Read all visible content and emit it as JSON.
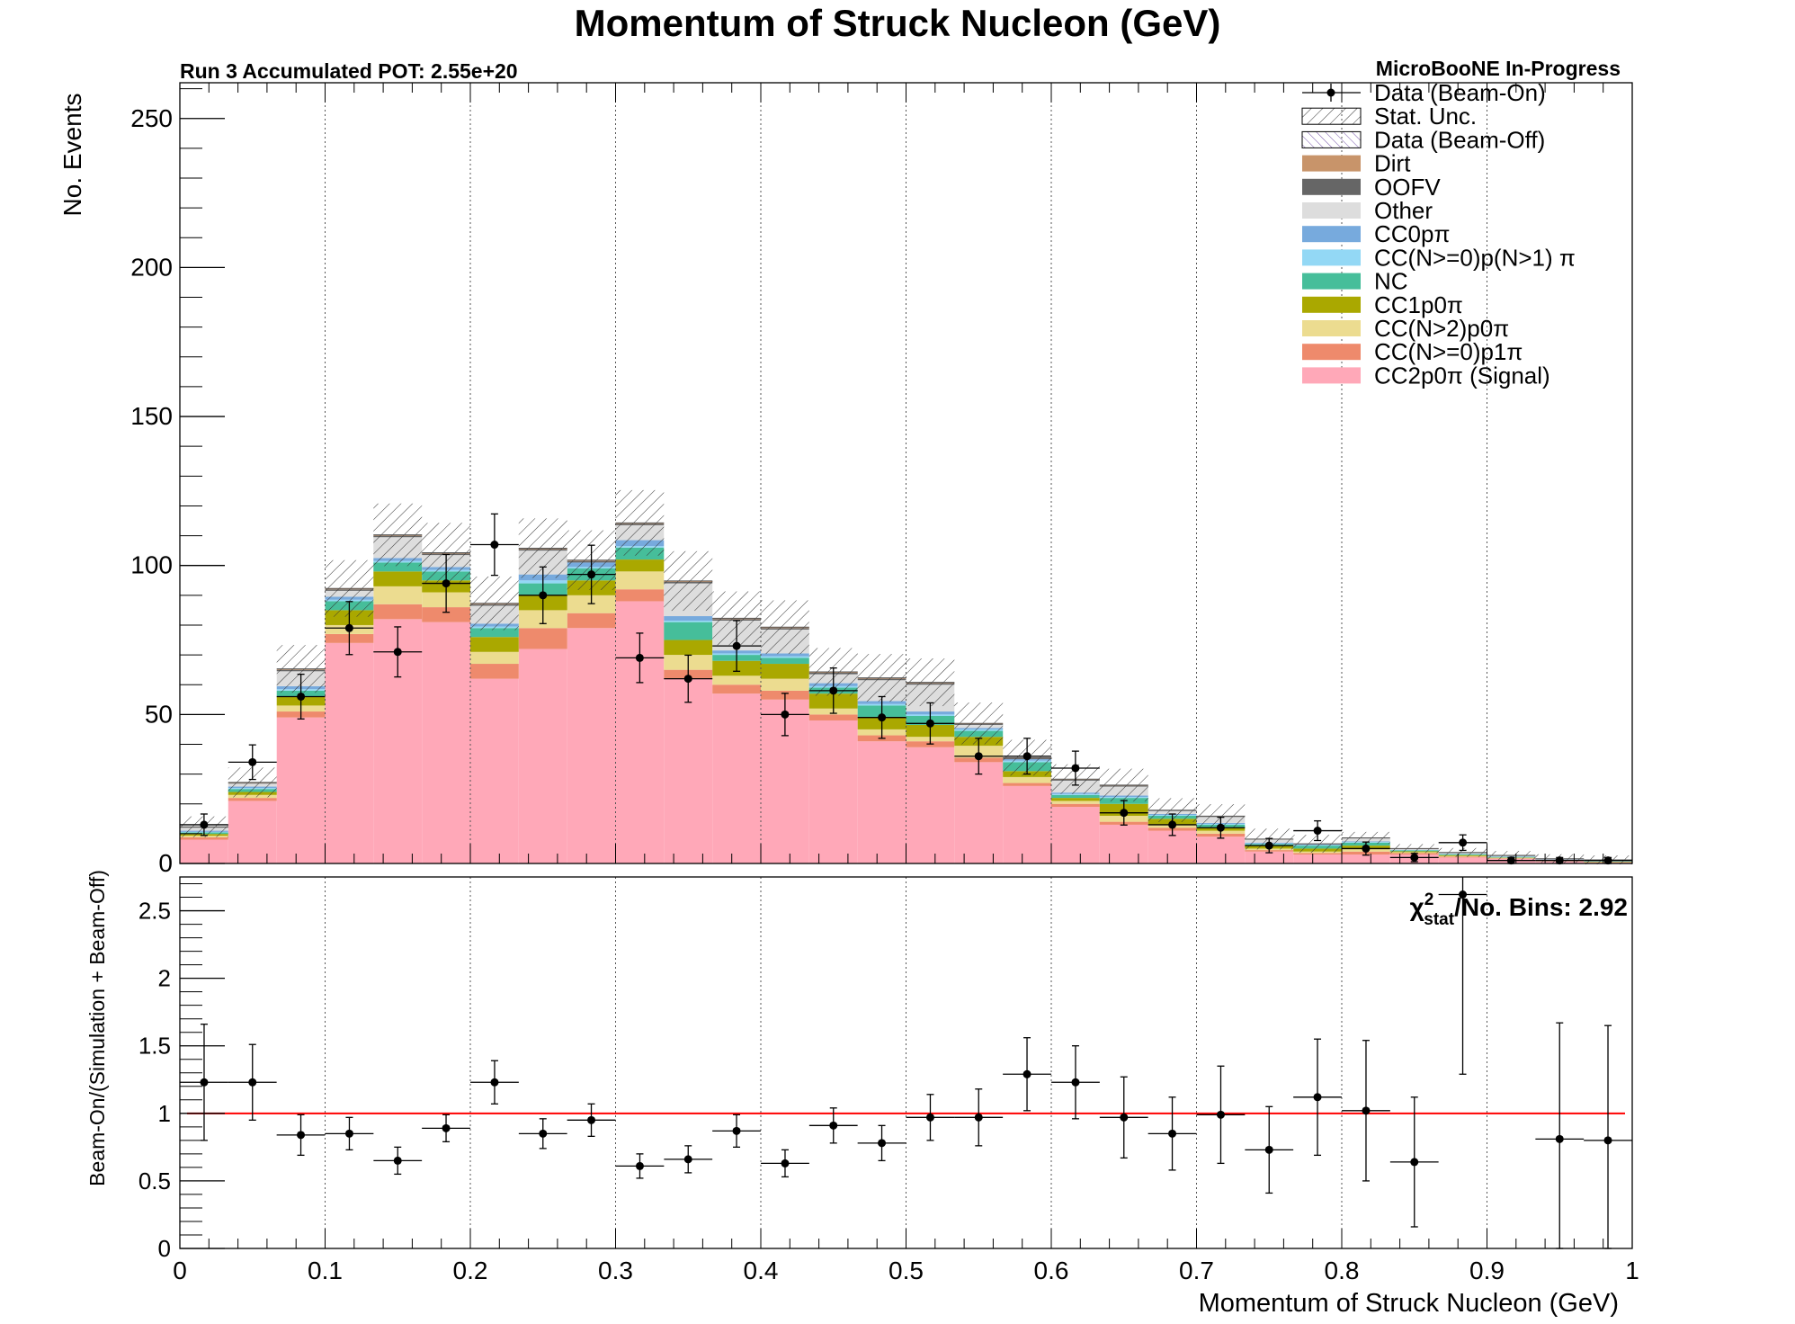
{
  "chart_data": [
    {
      "type": "bar",
      "stacked": true,
      "title": "Momentum of Struck Nucleon (GeV)",
      "subtitle_left": "Run 3 Accumulated POT: 2.55e+20",
      "subtitle_right": "MicroBooNE In-Progress",
      "ylabel": "No. Events",
      "xlabel": "",
      "xlim": [
        0,
        1
      ],
      "ylim": [
        0,
        262
      ],
      "grid": "vertical dotted at x = 0.1 … 0.9",
      "legend_position": "top-right",
      "y_ticks": [
        "0",
        "50",
        "100",
        "150",
        "200",
        "250"
      ],
      "bin_edges": [
        0,
        0.0333,
        0.0667,
        0.1,
        0.1333,
        0.1667,
        0.2,
        0.2333,
        0.2667,
        0.3,
        0.3333,
        0.3667,
        0.4,
        0.4333,
        0.4667,
        0.5,
        0.5333,
        0.5667,
        0.6,
        0.6333,
        0.6667,
        0.7,
        0.7333,
        0.7667,
        0.8,
        0.8333,
        0.8667,
        0.9,
        0.9333,
        0.9667,
        1.0
      ],
      "series": [
        {
          "name": "CC2p0π (Signal)",
          "color": "#ffa8b8",
          "values": [
            8,
            21,
            49,
            74,
            82,
            81,
            62,
            72,
            79,
            88,
            62,
            57,
            55,
            48,
            41,
            39,
            34,
            26,
            19,
            13,
            11,
            9,
            4,
            3,
            3,
            3,
            2,
            1.5,
            0.7,
            0.3
          ]
        },
        {
          "name": "CC(N>=0)p1π",
          "color": "#ee8a6c",
          "values": [
            0.8,
            1,
            2,
            3,
            5,
            5,
            5,
            7,
            5,
            4,
            3,
            3,
            3,
            2,
            2,
            2,
            1.5,
            1,
            1,
            1,
            1,
            1,
            0.5,
            0.5,
            1,
            0.5,
            0.3,
            0.2,
            0.1,
            0.1
          ]
        },
        {
          "name": "CC(N>2)p0π",
          "color": "#ecdc90",
          "values": [
            0.5,
            1,
            2,
            3,
            6,
            5,
            4,
            6,
            6,
            6,
            5,
            3,
            4,
            2,
            2,
            1.5,
            4,
            2,
            1,
            2,
            1,
            1,
            0.5,
            0.5,
            1,
            0.3,
            0.2,
            0.2,
            0.1,
            0.1
          ]
        },
        {
          "name": "CC1p0π",
          "color": "#aaa800",
          "values": [
            0.6,
            1,
            3,
            5,
            5,
            4,
            5,
            5,
            5,
            4,
            5,
            5,
            5,
            5,
            4,
            4,
            3,
            2,
            1,
            4,
            2,
            1,
            1,
            1,
            1,
            0.3,
            0.3,
            0.1,
            0.1,
            0.1
          ]
        },
        {
          "name": "NC",
          "color": "#46be9a",
          "values": [
            0.5,
            1,
            2,
            3,
            3,
            3,
            3,
            4,
            4,
            4,
            6,
            2,
            2,
            2,
            4,
            3,
            2,
            3,
            1,
            2,
            1,
            1,
            0.5,
            1,
            1,
            0.3,
            0.3,
            0.2,
            0.1,
            0.1
          ]
        },
        {
          "name": "CC(N>=0)p(N>1) π",
          "color": "#93d8f5",
          "values": [
            0.2,
            0.3,
            0.5,
            0.5,
            0.5,
            0.5,
            0.5,
            1,
            0.5,
            0.5,
            0.5,
            0.5,
            0.5,
            0.5,
            0.5,
            0.5,
            0.5,
            0.5,
            0.3,
            0.3,
            0.3,
            0.3,
            0.2,
            0.2,
            0.2,
            0.1,
            0.1,
            0.1,
            0.1,
            0.1
          ]
        },
        {
          "name": "CC0pπ",
          "color": "#77aadd",
          "values": [
            0.4,
            0.5,
            1,
            1,
            1,
            1,
            1,
            2,
            1.5,
            2,
            1.5,
            1,
            1,
            1,
            1,
            1,
            0.5,
            0.5,
            0.5,
            0.5,
            0.3,
            0.3,
            0.3,
            0.2,
            0.2,
            0.1,
            0.1,
            0.1,
            0.1,
            0.1
          ]
        },
        {
          "name": "Other",
          "color": "#dddddd",
          "values": [
            1,
            1,
            5,
            2,
            7,
            4,
            6,
            8,
            0,
            5,
            11,
            10,
            8,
            3,
            7,
            9,
            1,
            0,
            4,
            3,
            1,
            2,
            1,
            0,
            1,
            0.2,
            0.2,
            0.1,
            0.1,
            0.1
          ]
        },
        {
          "name": "OOFV",
          "color": "#666666",
          "values": [
            0.2,
            0.2,
            0.5,
            0.5,
            0.5,
            0.5,
            0.5,
            0.5,
            0.5,
            0.5,
            0.5,
            0.5,
            0.5,
            0.5,
            0.5,
            0.5,
            0.3,
            0.3,
            0.3,
            0.3,
            0.2,
            0.2,
            0.1,
            0.1,
            0.1,
            0.1,
            0.1,
            0.1,
            0.1,
            0.1
          ]
        },
        {
          "name": "Dirt",
          "color": "#c8946a",
          "values": [
            0.1,
            0.2,
            0.3,
            0.3,
            0.3,
            0.3,
            0.3,
            0.3,
            0.3,
            0.3,
            0.3,
            0.3,
            0.3,
            0.3,
            0.3,
            0.3,
            0.2,
            0.2,
            0.2,
            0.2,
            0.1,
            0.1,
            0.1,
            0.1,
            0.1,
            0.1,
            0.1,
            0.1,
            0.1,
            0.1
          ]
        },
        {
          "name": "Data (Beam-Off)",
          "color": "#7755aa",
          "values": [
            0,
            0,
            0,
            0,
            0,
            0,
            0,
            0,
            0,
            0,
            0,
            0,
            0,
            0,
            0,
            0,
            0,
            0,
            0,
            0,
            0,
            0,
            0,
            0,
            0,
            0,
            0,
            0,
            0,
            0
          ]
        }
      ],
      "stat_unc": [
        3.5,
        5,
        8,
        9.5,
        10.5,
        10,
        9,
        10,
        10,
        11,
        10,
        9,
        9,
        8,
        8,
        8,
        7,
        6,
        5,
        5.5,
        4,
        4,
        3.5,
        3,
        2,
        1.5,
        1.5,
        1.5,
        1.5,
        1.5
      ],
      "data_beam_on": {
        "name": "Data (Beam-On)",
        "values": [
          13,
          34,
          56,
          79,
          71,
          94,
          107,
          90,
          97,
          69,
          62,
          73,
          50,
          58,
          49,
          47,
          36,
          36,
          32,
          17,
          13,
          12,
          6,
          11,
          5,
          2,
          7,
          1,
          1,
          1
        ],
        "errors": [
          3.6,
          5.8,
          7.5,
          8.9,
          8.4,
          9.7,
          10.3,
          9.5,
          9.8,
          8.3,
          7.9,
          8.5,
          7.1,
          7.6,
          7.0,
          6.9,
          6.0,
          6.0,
          5.7,
          4.1,
          3.6,
          3.5,
          2.4,
          3.3,
          2.2,
          1.4,
          2.6,
          1.0,
          1.0,
          1.0
        ]
      },
      "legend_entries": [
        "Data (Beam-On)",
        "Stat. Unc.",
        "Data (Beam-Off)",
        "Dirt",
        "OOFV",
        "Other",
        "CC0pπ",
        "CC(N>=0)p(N>1) π",
        "NC",
        "CC1p0π",
        "CC(N>2)p0π",
        "CC(N>=0)p1π",
        "CC2p0π (Signal)"
      ]
    },
    {
      "type": "scatter",
      "ylabel": "Beam-On/(Simulation + Beam-Off)",
      "xlabel": "Momentum of Struck Nucleon (GeV)",
      "xlim": [
        0,
        1
      ],
      "ylim": [
        0,
        2.75
      ],
      "x_ticks": [
        "0",
        "0.1",
        "0.2",
        "0.3",
        "0.4",
        "0.5",
        "0.6",
        "0.7",
        "0.8",
        "0.9",
        "1"
      ],
      "y_ticks": [
        "0",
        "0.5",
        "1",
        "1.5",
        "2",
        "2.5"
      ],
      "reference_line": 1,
      "reference_color": "#ff0000",
      "annotation_main": "χ",
      "annotation_sup": "2",
      "annotation_sub": "stat",
      "annotation_rest": "/No. Bins: 2.92",
      "x": [
        0.0167,
        0.05,
        0.0833,
        0.1167,
        0.15,
        0.1833,
        0.2167,
        0.25,
        0.2833,
        0.3167,
        0.35,
        0.3833,
        0.4167,
        0.45,
        0.4833,
        0.5167,
        0.55,
        0.5833,
        0.6167,
        0.65,
        0.6833,
        0.7167,
        0.75,
        0.7833,
        0.8167,
        0.85,
        0.8833,
        0.9167,
        0.95,
        0.9833
      ],
      "ratio": [
        1.23,
        1.23,
        0.84,
        0.85,
        0.65,
        0.89,
        1.23,
        0.85,
        0.95,
        0.61,
        0.66,
        0.87,
        0.63,
        0.91,
        0.78,
        0.97,
        0.97,
        1.29,
        1.23,
        0.97,
        0.85,
        0.99,
        0.73,
        1.12,
        1.02,
        0.64,
        2.62,
        null,
        0.81,
        0.8
      ],
      "ratio_err": [
        0.43,
        0.28,
        0.15,
        0.12,
        0.1,
        0.1,
        0.16,
        0.11,
        0.12,
        0.09,
        0.1,
        0.12,
        0.1,
        0.13,
        0.13,
        0.17,
        0.21,
        0.27,
        0.27,
        0.3,
        0.27,
        0.36,
        0.32,
        0.43,
        0.52,
        0.48,
        1.33,
        null,
        0.86,
        0.85
      ]
    }
  ]
}
